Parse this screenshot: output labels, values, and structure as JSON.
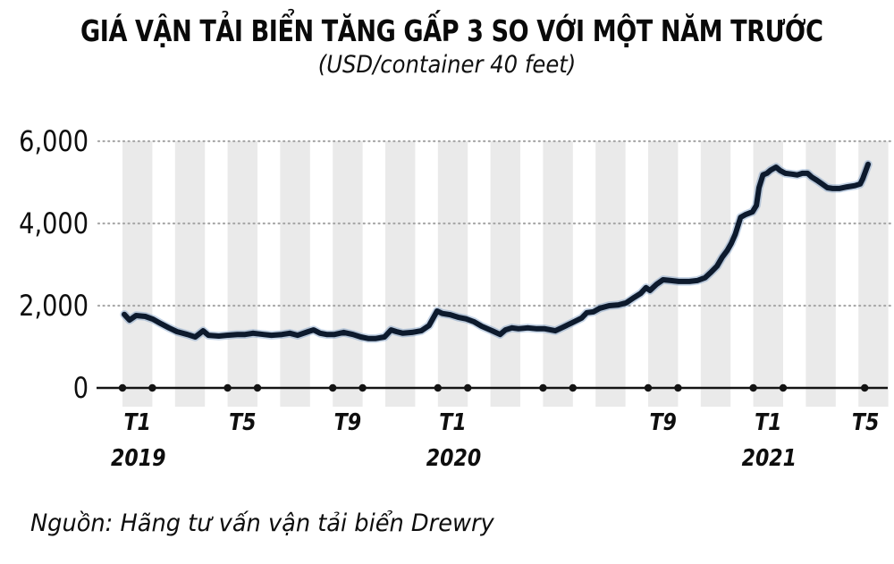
{
  "header": {
    "title": "GIÁ VẬN TẢI BIỂN TĂNG GẤP 3 SO VỚI MỘT NĂM TRƯỚC",
    "subtitle": "(USD/container 40 feet)"
  },
  "footer": {
    "source": "Nguồn: Hãng tư vấn vận tải biển Drewry"
  },
  "chart_data": {
    "type": "line",
    "title": "GIÁ VẬN TẢI BIỂN TĂNG GẤP 3 SO VỚI MỘT NĂM TRƯỚC",
    "subtitle": "(USD/container 40 feet)",
    "source": "Nguồn: Hãng tư vấn vận tải biển Drewry",
    "unit": "USD/container 40 feet",
    "x_axis_note": "t = months since January 2019 (0 = Jan 2019, 28 = May 2021)",
    "xlim_months": [
      0,
      28.3
    ],
    "ylim": [
      0,
      6000
    ],
    "grid": "horizontal dotted lines at 2000/4000/6000",
    "plot_bands": "every other month shaded light gray",
    "legend": "none",
    "y_ticks": [
      {
        "label": "0",
        "value": 0
      },
      {
        "label": "2,000",
        "value": 2000
      },
      {
        "label": "4,000",
        "value": 4000
      },
      {
        "label": "6,000",
        "value": 6000
      }
    ],
    "x_ticks": [
      {
        "label": "T1",
        "month": 0,
        "year": "2019"
      },
      {
        "label": "T5",
        "month": 4
      },
      {
        "label": "T9",
        "month": 8
      },
      {
        "label": "T1",
        "month": 12,
        "year": "2020"
      },
      {
        "label": "",
        "month": 16
      },
      {
        "label": "T9",
        "month": 20
      },
      {
        "label": "T1",
        "month": 24,
        "year": "2021"
      },
      {
        "label": "T5",
        "month": 28,
        "last": true
      }
    ],
    "shaded_months": [
      0,
      2,
      4,
      6,
      8,
      10,
      12,
      14,
      16,
      18,
      20,
      22,
      24,
      26,
      28
    ],
    "series": [
      {
        "name": "container-freight-rate",
        "points": [
          [
            0,
            1790
          ],
          [
            0.2,
            1650
          ],
          [
            0.45,
            1760
          ],
          [
            0.8,
            1740
          ],
          [
            1.1,
            1670
          ],
          [
            1.4,
            1560
          ],
          [
            1.7,
            1460
          ],
          [
            2,
            1370
          ],
          [
            2.4,
            1300
          ],
          [
            2.7,
            1240
          ],
          [
            3,
            1390
          ],
          [
            3.2,
            1280
          ],
          [
            3.6,
            1260
          ],
          [
            3.9,
            1280
          ],
          [
            4.3,
            1300
          ],
          [
            4.6,
            1300
          ],
          [
            4.9,
            1330
          ],
          [
            5.3,
            1300
          ],
          [
            5.6,
            1280
          ],
          [
            6,
            1300
          ],
          [
            6.3,
            1330
          ],
          [
            6.6,
            1280
          ],
          [
            7,
            1370
          ],
          [
            7.2,
            1410
          ],
          [
            7.45,
            1330
          ],
          [
            7.7,
            1300
          ],
          [
            8,
            1300
          ],
          [
            8.35,
            1350
          ],
          [
            8.7,
            1300
          ],
          [
            9,
            1240
          ],
          [
            9.3,
            1200
          ],
          [
            9.55,
            1200
          ],
          [
            9.9,
            1240
          ],
          [
            10.15,
            1410
          ],
          [
            10.35,
            1370
          ],
          [
            10.6,
            1330
          ],
          [
            10.95,
            1350
          ],
          [
            11.3,
            1390
          ],
          [
            11.6,
            1520
          ],
          [
            11.9,
            1870
          ],
          [
            12.1,
            1810
          ],
          [
            12.4,
            1780
          ],
          [
            12.7,
            1720
          ],
          [
            13,
            1680
          ],
          [
            13.3,
            1610
          ],
          [
            13.6,
            1500
          ],
          [
            14,
            1390
          ],
          [
            14.3,
            1300
          ],
          [
            14.5,
            1410
          ],
          [
            14.75,
            1460
          ],
          [
            15,
            1440
          ],
          [
            15.35,
            1460
          ],
          [
            15.7,
            1440
          ],
          [
            16,
            1440
          ],
          [
            16.4,
            1390
          ],
          [
            16.7,
            1480
          ],
          [
            17.05,
            1590
          ],
          [
            17.4,
            1700
          ],
          [
            17.6,
            1830
          ],
          [
            17.85,
            1850
          ],
          [
            18.1,
            1940
          ],
          [
            18.45,
            2000
          ],
          [
            18.8,
            2020
          ],
          [
            19.1,
            2070
          ],
          [
            19.4,
            2200
          ],
          [
            19.65,
            2300
          ],
          [
            19.85,
            2440
          ],
          [
            20,
            2370
          ],
          [
            20.25,
            2520
          ],
          [
            20.5,
            2630
          ],
          [
            20.8,
            2610
          ],
          [
            21.1,
            2590
          ],
          [
            21.5,
            2590
          ],
          [
            21.8,
            2610
          ],
          [
            22.1,
            2680
          ],
          [
            22.3,
            2800
          ],
          [
            22.55,
            2960
          ],
          [
            22.75,
            3180
          ],
          [
            22.95,
            3350
          ],
          [
            23.1,
            3520
          ],
          [
            23.25,
            3740
          ],
          [
            23.45,
            4150
          ],
          [
            23.65,
            4220
          ],
          [
            23.9,
            4280
          ],
          [
            24.05,
            4440
          ],
          [
            24.15,
            4870
          ],
          [
            24.3,
            5180
          ],
          [
            24.45,
            5220
          ],
          [
            24.6,
            5300
          ],
          [
            24.8,
            5370
          ],
          [
            24.95,
            5290
          ],
          [
            25.15,
            5220
          ],
          [
            25.4,
            5200
          ],
          [
            25.6,
            5180
          ],
          [
            25.8,
            5220
          ],
          [
            26,
            5220
          ],
          [
            26.15,
            5130
          ],
          [
            26.35,
            5050
          ],
          [
            26.55,
            4960
          ],
          [
            26.75,
            4870
          ],
          [
            26.95,
            4850
          ],
          [
            27.2,
            4850
          ],
          [
            27.5,
            4890
          ],
          [
            27.8,
            4920
          ],
          [
            28,
            4960
          ],
          [
            28.1,
            5090
          ],
          [
            28.3,
            5440
          ]
        ]
      }
    ],
    "colors": {
      "line": "#0d1a2d",
      "line_halo": "#4f7bb2",
      "band": "#eaeaea",
      "grid": "#a9a9a9",
      "axis": "#141414",
      "text": "#0b0b0b",
      "background": "#ffffff"
    }
  }
}
